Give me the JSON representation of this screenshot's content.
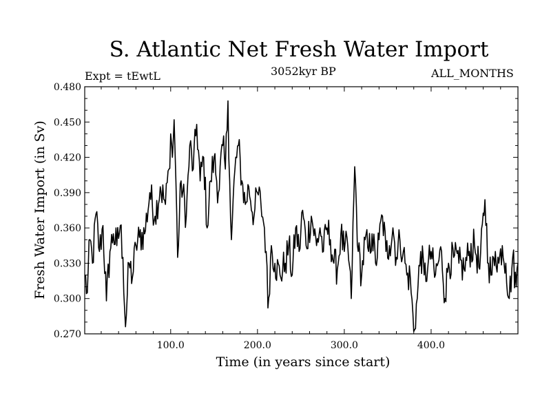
{
  "chart_data": {
    "type": "line",
    "title": "S. Atlantic Net Fresh Water Import",
    "experiment_label": "Expt = tEwtL",
    "period_label": "3052kyr BP",
    "months_label": "ALL_MONTHS",
    "xlabel": "Time (in years since start)",
    "ylabel": "Fresh Water Import (in Sv)",
    "xlim": [
      1,
      500
    ],
    "ylim": [
      0.27,
      0.48
    ],
    "x_ticks": [
      100,
      200,
      300,
      400
    ],
    "x_tick_labels": [
      "100.0",
      "200.0",
      "300.0",
      "400.0"
    ],
    "y_ticks": [
      0.27,
      0.3,
      0.33,
      0.36,
      0.39,
      0.42,
      0.45,
      0.48
    ],
    "y_tick_labels": [
      "0.270",
      "0.300",
      "0.330",
      "0.360",
      "0.390",
      "0.420",
      "0.450",
      "0.480"
    ],
    "series": [
      {
        "name": "Fresh Water Import",
        "x_start": 1,
        "x_step": 1,
        "anchors": [
          [
            1,
            0.32
          ],
          [
            4,
            0.305
          ],
          [
            7,
            0.35
          ],
          [
            10,
            0.33
          ],
          [
            14,
            0.372
          ],
          [
            18,
            0.34
          ],
          [
            22,
            0.362
          ],
          [
            26,
            0.298
          ],
          [
            30,
            0.34
          ],
          [
            34,
            0.355
          ],
          [
            38,
            0.345
          ],
          [
            42,
            0.362
          ],
          [
            45,
            0.335
          ],
          [
            48,
            0.276
          ],
          [
            52,
            0.33
          ],
          [
            56,
            0.318
          ],
          [
            60,
            0.345
          ],
          [
            64,
            0.352
          ],
          [
            70,
            0.355
          ],
          [
            76,
            0.39
          ],
          [
            82,
            0.37
          ],
          [
            88,
            0.395
          ],
          [
            94,
            0.38
          ],
          [
            98,
            0.41
          ],
          [
            100,
            0.44
          ],
          [
            102,
            0.42
          ],
          [
            104,
            0.452
          ],
          [
            106,
            0.4
          ],
          [
            108,
            0.335
          ],
          [
            112,
            0.4
          ],
          [
            118,
            0.37
          ],
          [
            122,
            0.43
          ],
          [
            126,
            0.41
          ],
          [
            130,
            0.448
          ],
          [
            134,
            0.4
          ],
          [
            138,
            0.42
          ],
          [
            142,
            0.36
          ],
          [
            146,
            0.4
          ],
          [
            150,
            0.42
          ],
          [
            155,
            0.39
          ],
          [
            160,
            0.43
          ],
          [
            163,
            0.41
          ],
          [
            166,
            0.468
          ],
          [
            168,
            0.4
          ],
          [
            170,
            0.35
          ],
          [
            174,
            0.41
          ],
          [
            178,
            0.43
          ],
          [
            182,
            0.4
          ],
          [
            186,
            0.38
          ],
          [
            190,
            0.395
          ],
          [
            196,
            0.37
          ],
          [
            200,
            0.39
          ],
          [
            204,
            0.38
          ],
          [
            208,
            0.36
          ],
          [
            210,
            0.34
          ],
          [
            212,
            0.292
          ],
          [
            216,
            0.345
          ],
          [
            220,
            0.33
          ],
          [
            226,
            0.32
          ],
          [
            232,
            0.33
          ],
          [
            236,
            0.345
          ],
          [
            240,
            0.32
          ],
          [
            244,
            0.36
          ],
          [
            248,
            0.34
          ],
          [
            252,
            0.375
          ],
          [
            256,
            0.345
          ],
          [
            262,
            0.37
          ],
          [
            268,
            0.345
          ],
          [
            272,
            0.36
          ],
          [
            276,
            0.34
          ],
          [
            280,
            0.36
          ],
          [
            284,
            0.35
          ],
          [
            288,
            0.33
          ],
          [
            292,
            0.325
          ],
          [
            296,
            0.355
          ],
          [
            300,
            0.34
          ],
          [
            304,
            0.345
          ],
          [
            308,
            0.3
          ],
          [
            312,
            0.412
          ],
          [
            316,
            0.34
          ],
          [
            320,
            0.32
          ],
          [
            324,
            0.35
          ],
          [
            328,
            0.34
          ],
          [
            332,
            0.355
          ],
          [
            336,
            0.33
          ],
          [
            340,
            0.35
          ],
          [
            344,
            0.37
          ],
          [
            348,
            0.34
          ],
          [
            352,
            0.345
          ],
          [
            356,
            0.36
          ],
          [
            360,
            0.335
          ],
          [
            364,
            0.35
          ],
          [
            368,
            0.34
          ],
          [
            372,
            0.32
          ],
          [
            376,
            0.318
          ],
          [
            380,
            0.272
          ],
          [
            384,
            0.3
          ],
          [
            388,
            0.34
          ],
          [
            392,
            0.32
          ],
          [
            396,
            0.325
          ],
          [
            400,
            0.34
          ],
          [
            404,
            0.318
          ],
          [
            408,
            0.33
          ],
          [
            412,
            0.34
          ],
          [
            416,
            0.3
          ],
          [
            420,
            0.33
          ],
          [
            426,
            0.335
          ],
          [
            432,
            0.33
          ],
          [
            438,
            0.325
          ],
          [
            444,
            0.34
          ],
          [
            450,
            0.345
          ],
          [
            456,
            0.325
          ],
          [
            462,
            0.384
          ],
          [
            466,
            0.33
          ],
          [
            470,
            0.32
          ],
          [
            474,
            0.34
          ],
          [
            478,
            0.33
          ],
          [
            482,
            0.345
          ],
          [
            486,
            0.33
          ],
          [
            490,
            0.3
          ],
          [
            494,
            0.335
          ],
          [
            498,
            0.31
          ],
          [
            500,
            0.33
          ]
        ]
      }
    ]
  }
}
